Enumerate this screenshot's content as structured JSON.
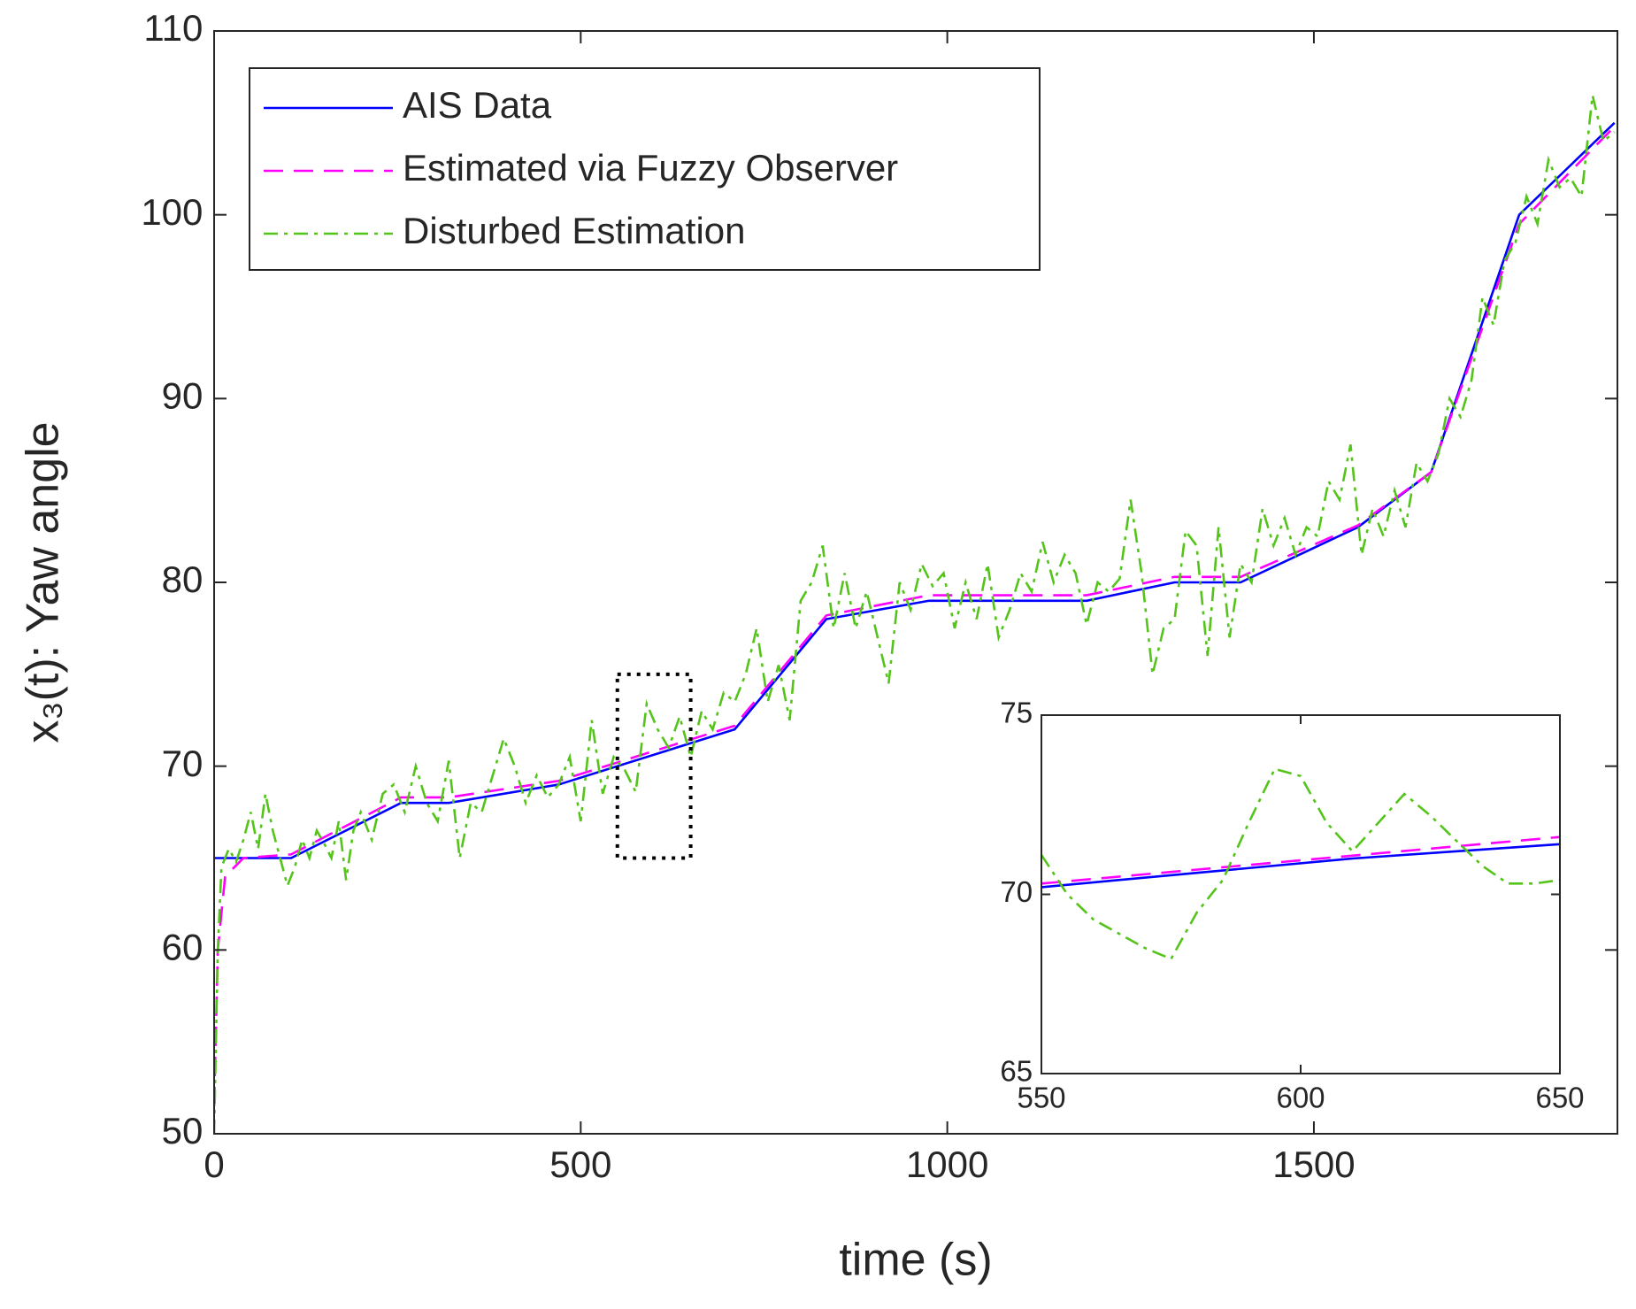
{
  "chart_data": [
    {
      "type": "line",
      "x_label": "time (s)",
      "y_label": "x₃(t): Yaw angle",
      "xlim": [
        0,
        1914
      ],
      "ylim": [
        50,
        110
      ],
      "xticks": [
        0,
        500,
        1000,
        1500
      ],
      "yticks": [
        50,
        60,
        70,
        80,
        90,
        100,
        110
      ],
      "legend": "upper left",
      "series": [
        {
          "name": "AIS Data",
          "color": "#0000ff",
          "style": "solid",
          "x": [
            0,
            105,
            255,
            320,
            470,
            710,
            835,
            975,
            1190,
            1310,
            1400,
            1560,
            1660,
            1780,
            1910
          ],
          "values": [
            65,
            65,
            68,
            68,
            69,
            72,
            78,
            79,
            79,
            80,
            80,
            83,
            86,
            100,
            105
          ]
        },
        {
          "name": "Estimated via Fuzzy Observer",
          "color": "#ff00ff",
          "style": "dashed",
          "x": [
            0,
            5,
            15,
            40,
            105,
            255,
            320,
            470,
            710,
            835,
            975,
            1190,
            1310,
            1400,
            1560,
            1660,
            1780,
            1910
          ],
          "values": [
            51.5,
            60,
            64,
            65,
            65.2,
            68.3,
            68.3,
            69.2,
            72.2,
            78.2,
            79.3,
            79.3,
            80.3,
            80.3,
            83.1,
            86,
            99.5,
            104.8
          ]
        },
        {
          "name": "Disturbed Estimation",
          "color": "#55c41a",
          "style": "dashdot",
          "x": [
            0,
            5,
            10,
            20,
            30,
            40,
            50,
            60,
            70,
            80,
            90,
            100,
            110,
            120,
            130,
            140,
            150,
            160,
            170,
            180,
            190,
            200,
            215,
            230,
            245,
            260,
            275,
            290,
            305,
            320,
            335,
            350,
            365,
            380,
            395,
            410,
            425,
            440,
            455,
            470,
            485,
            500,
            515,
            530,
            545,
            560,
            575,
            590,
            605,
            620,
            635,
            650,
            665,
            680,
            695,
            710,
            725,
            740,
            755,
            770,
            785,
            800,
            815,
            830,
            845,
            860,
            875,
            890,
            905,
            920,
            935,
            950,
            965,
            980,
            995,
            1010,
            1025,
            1040,
            1055,
            1070,
            1085,
            1100,
            1115,
            1130,
            1145,
            1160,
            1175,
            1190,
            1205,
            1220,
            1235,
            1250,
            1265,
            1280,
            1295,
            1310,
            1325,
            1340,
            1355,
            1370,
            1385,
            1400,
            1415,
            1430,
            1445,
            1460,
            1475,
            1490,
            1505,
            1520,
            1535,
            1550,
            1565,
            1580,
            1595,
            1610,
            1625,
            1640,
            1655,
            1670,
            1685,
            1700,
            1715,
            1730,
            1745,
            1760,
            1775,
            1790,
            1805,
            1820,
            1835,
            1850,
            1865,
            1880,
            1895,
            1910
          ],
          "values": [
            50,
            60,
            64.5,
            65.5,
            64.8,
            66,
            67.5,
            65.5,
            68.5,
            66.5,
            65,
            63.5,
            64.5,
            66,
            65,
            66.5,
            65.8,
            65,
            67,
            63.8,
            66.5,
            67.5,
            66,
            68.5,
            69,
            67.5,
            70,
            68,
            67,
            70.3,
            65,
            68,
            67.5,
            69.5,
            71.5,
            70,
            68,
            69.5,
            68.3,
            69,
            70.5,
            67,
            72.5,
            68.5,
            70.5,
            69.8,
            68.6,
            73.4,
            72,
            71,
            72.7,
            70.5,
            73,
            72,
            74,
            73.5,
            75,
            77.5,
            73.5,
            75.5,
            72.5,
            79,
            80,
            82,
            77.5,
            80.5,
            77.5,
            79.5,
            77,
            74.5,
            80,
            78.5,
            81,
            79.8,
            80.5,
            77.5,
            80,
            78,
            81,
            77,
            78.5,
            80.5,
            79.5,
            82.2,
            80,
            81.5,
            80.5,
            77.7,
            80,
            79.5,
            80.2,
            84.5,
            80.5,
            75,
            77.5,
            78,
            82.8,
            82,
            76,
            83,
            77,
            81,
            80,
            84,
            82,
            83.5,
            81.5,
            83,
            82.5,
            85.5,
            84.5,
            87.5,
            81.5,
            84,
            82.5,
            85,
            83,
            86.5,
            85.5,
            87,
            90,
            89,
            91,
            95.5,
            94,
            97.5,
            98.5,
            101,
            99.5,
            103,
            101.5,
            102,
            101,
            106.5,
            104,
            104.5
          ]
        }
      ]
    },
    {
      "type": "line",
      "xlim": [
        550,
        650
      ],
      "ylim": [
        65,
        75
      ],
      "xticks": [
        550,
        600,
        650
      ],
      "yticks": [
        65,
        70,
        75
      ],
      "series": [
        {
          "color": "#0000ff",
          "style": "solid",
          "x": [
            550,
            580,
            610,
            650
          ],
          "values": [
            70.2,
            70.6,
            71,
            71.4
          ]
        },
        {
          "color": "#ff00ff",
          "style": "dashed",
          "x": [
            550,
            650
          ],
          "values": [
            70.3,
            71.6
          ]
        },
        {
          "color": "#55c41a",
          "style": "dashdot",
          "x": [
            550,
            555,
            560,
            570,
            575,
            580,
            585,
            590,
            595,
            600,
            605,
            610,
            615,
            620,
            625,
            630,
            635,
            640,
            645,
            650
          ],
          "values": [
            71.1,
            70,
            69.3,
            68.5,
            68.2,
            69.5,
            70.4,
            72,
            73.5,
            73.3,
            72,
            71.2,
            72,
            72.8,
            72.2,
            71.5,
            70.8,
            70.3,
            70.3,
            70.4
          ]
        }
      ]
    }
  ]
}
